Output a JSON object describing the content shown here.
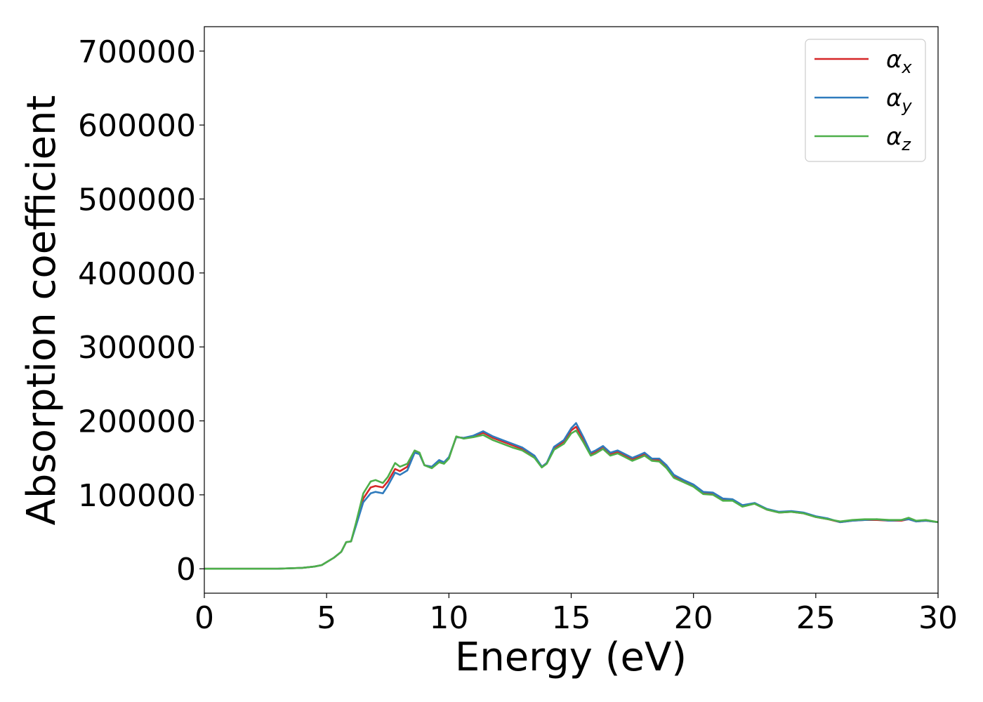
{
  "chart_data": {
    "type": "line",
    "title": "",
    "xlabel": "Energy (eV)",
    "ylabel": "Absorption coefficient",
    "xlim": [
      0,
      30
    ],
    "ylim": [
      -33000,
      733000
    ],
    "grid": false,
    "legend_position": "top-right",
    "x_ticks": [
      "0",
      "5",
      "10",
      "15",
      "20",
      "25",
      "30"
    ],
    "y_ticks": [
      "0",
      "100000",
      "200000",
      "300000",
      "400000",
      "500000",
      "600000",
      "700000"
    ],
    "x": [
      0,
      1,
      2,
      3,
      4,
      4.5,
      4.8,
      5,
      5.3,
      5.6,
      5.8,
      6.0,
      6.2,
      6.5,
      6.8,
      7.0,
      7.3,
      7.5,
      7.8,
      8.0,
      8.3,
      8.6,
      8.8,
      9.0,
      9.3,
      9.6,
      9.8,
      10.0,
      10.3,
      10.6,
      11.0,
      11.4,
      11.8,
      12.2,
      12.6,
      13.0,
      13.5,
      13.8,
      14.0,
      14.3,
      14.7,
      15.0,
      15.2,
      15.5,
      15.8,
      16.0,
      16.3,
      16.6,
      16.9,
      17.2,
      17.5,
      17.8,
      18.0,
      18.3,
      18.6,
      18.9,
      19.2,
      19.6,
      20.0,
      20.4,
      20.8,
      21.2,
      21.6,
      22.0,
      22.5,
      23.0,
      23.5,
      24.0,
      24.5,
      25.0,
      25.5,
      26.0,
      26.5,
      27.0,
      27.5,
      28.0,
      28.5,
      28.8,
      29.1,
      29.5,
      30.0
    ],
    "series": [
      {
        "name": "α_x",
        "color": "#d62728",
        "values": [
          0,
          0,
          0,
          100,
          1200,
          3000,
          5000,
          9000,
          15000,
          23000,
          36000,
          37000,
          60000,
          95000,
          110000,
          112000,
          110000,
          118000,
          135000,
          132000,
          138000,
          158000,
          155000,
          140000,
          138000,
          146000,
          143000,
          150000,
          178000,
          177000,
          179000,
          184000,
          177000,
          172000,
          167000,
          162000,
          152000,
          138000,
          143000,
          163000,
          172000,
          187000,
          192000,
          175000,
          155000,
          158000,
          165000,
          155000,
          158000,
          153000,
          148000,
          152000,
          155000,
          147000,
          147000,
          137000,
          125000,
          118000,
          112000,
          102000,
          101000,
          93000,
          93000,
          85000,
          88000,
          80000,
          76000,
          77000,
          75000,
          70000,
          67000,
          63000,
          65000,
          66000,
          66000,
          65000,
          65000,
          67000,
          64000,
          65000,
          63000
        ]
      },
      {
        "name": "α_y",
        "color": "#2f7bbd",
        "values": [
          0,
          0,
          0,
          100,
          1200,
          3000,
          5000,
          9000,
          15000,
          23000,
          36000,
          37000,
          58000,
          90000,
          102000,
          104000,
          102000,
          112000,
          130000,
          127000,
          133000,
          157000,
          155000,
          140000,
          138000,
          147000,
          144000,
          151000,
          178000,
          177000,
          180000,
          186000,
          179000,
          174000,
          169000,
          164000,
          153000,
          138000,
          143000,
          165000,
          174000,
          190000,
          197000,
          178000,
          157000,
          160000,
          166000,
          157000,
          160000,
          155000,
          150000,
          154000,
          157000,
          149000,
          149000,
          140000,
          127000,
          120000,
          114000,
          104000,
          103000,
          95000,
          94000,
          86000,
          89000,
          81000,
          77000,
          78000,
          76000,
          71000,
          68000,
          63000,
          65000,
          66000,
          67000,
          65000,
          66000,
          67000,
          64000,
          65000,
          63000
        ]
      },
      {
        "name": "α_z",
        "color": "#4daf4a",
        "values": [
          0,
          0,
          0,
          100,
          1200,
          3000,
          5000,
          9000,
          15000,
          23000,
          36000,
          37000,
          62000,
          102000,
          118000,
          120000,
          116000,
          124000,
          143000,
          138000,
          142000,
          160000,
          157000,
          140000,
          136000,
          144000,
          142000,
          149000,
          179000,
          176000,
          178000,
          181000,
          174000,
          169000,
          164000,
          160000,
          150000,
          137000,
          142000,
          161000,
          169000,
          183000,
          187000,
          171000,
          153000,
          156000,
          162000,
          153000,
          156000,
          151000,
          146000,
          150000,
          153000,
          146000,
          145000,
          136000,
          123000,
          117000,
          111000,
          101000,
          100000,
          92000,
          92000,
          84000,
          88000,
          80000,
          76000,
          77000,
          75000,
          70000,
          67000,
          64000,
          66000,
          67000,
          67000,
          66000,
          66000,
          69000,
          65000,
          66000,
          63000
        ]
      }
    ]
  },
  "legend": {
    "items": [
      {
        "base": "α",
        "sub": "x"
      },
      {
        "base": "α",
        "sub": "y"
      },
      {
        "base": "α",
        "sub": "z"
      }
    ]
  }
}
